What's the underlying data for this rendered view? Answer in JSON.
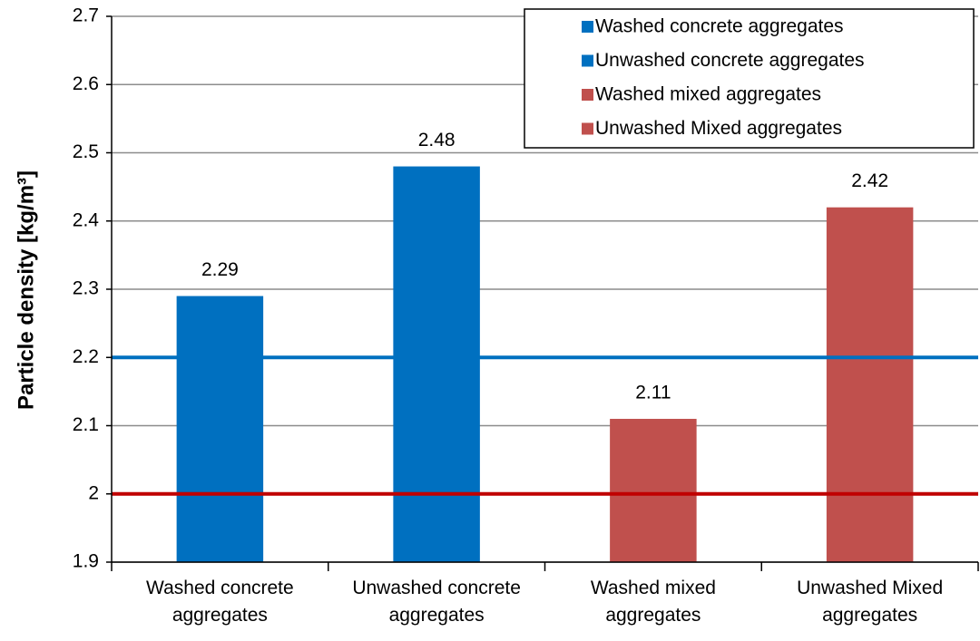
{
  "chart_data": {
    "type": "bar",
    "y_label": "Particle density [kg/m³]",
    "categories": [
      "Washed concrete aggregates",
      "Unwashed concrete aggregates",
      "Washed mixed aggregates",
      "Unwashed Mixed aggregates"
    ],
    "values": [
      2.29,
      2.48,
      2.11,
      2.42
    ],
    "colors": [
      "#0070c0",
      "#0070c0",
      "#c0504d",
      "#c0504d"
    ],
    "ylim": [
      1.9,
      2.7
    ],
    "yticks": [
      1.9,
      2,
      2.1,
      2.2,
      2.3,
      2.4,
      2.5,
      2.6,
      2.7
    ],
    "grid": true,
    "legend": "top-right",
    "reference_lines": [
      {
        "value": 2.2,
        "color": "#0070c0"
      },
      {
        "value": 2,
        "color": "#c00000"
      }
    ]
  }
}
